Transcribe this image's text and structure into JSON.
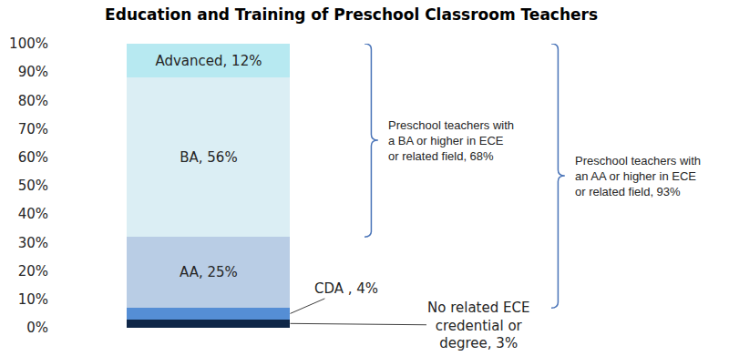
{
  "chart_data": {
    "type": "bar",
    "title": "Education and Training of Preschool Classroom Teachers",
    "stacked": true,
    "data_labels": true,
    "grid": false,
    "tick_labels": "y",
    "categories": [
      null
    ],
    "series": [
      {
        "name": "No related ECE credential or degree",
        "color": "#0f2748",
        "values": [
          3
        ],
        "value_labels": [
          "No related ECE credential or degree, 3%"
        ]
      },
      {
        "name": "CDA",
        "color": "#558ed5",
        "values": [
          4
        ],
        "value_labels": [
          "CDA , 4%"
        ]
      },
      {
        "name": "AA",
        "color": "#b9cde5",
        "values": [
          25
        ],
        "value_labels": [
          "AA, 25%"
        ]
      },
      {
        "name": "BA",
        "color": "#dbeef4",
        "values": [
          56
        ],
        "value_labels": [
          "BA, 56%"
        ]
      },
      {
        "name": "Advanced",
        "color": "#b7e9f1",
        "values": [
          12
        ],
        "value_labels": [
          "Advanced, 12%"
        ]
      }
    ],
    "ylim": [
      0,
      100
    ],
    "yticks": [
      {
        "value": 0,
        "label": "0%"
      },
      {
        "value": 10,
        "label": "10%"
      },
      {
        "value": 20,
        "label": "20%"
      },
      {
        "value": 30,
        "label": "30%"
      },
      {
        "value": 40,
        "label": "40%"
      },
      {
        "value": 50,
        "label": "50%"
      },
      {
        "value": 60,
        "label": "60%"
      },
      {
        "value": 70,
        "label": "70%"
      },
      {
        "value": 80,
        "label": "80%"
      },
      {
        "value": 90,
        "label": "90%"
      },
      {
        "value": 100,
        "label": "100%"
      }
    ],
    "annotations": [
      {
        "text": "Preschool teachers with a BA or higher in ECE or related field, 68%",
        "series": [
          "BA",
          "Advanced"
        ]
      },
      {
        "text": "Preschool teachers with an AA or higher in ECE or related field, 93%",
        "series": [
          "AA",
          "BA",
          "Advanced"
        ]
      }
    ]
  }
}
